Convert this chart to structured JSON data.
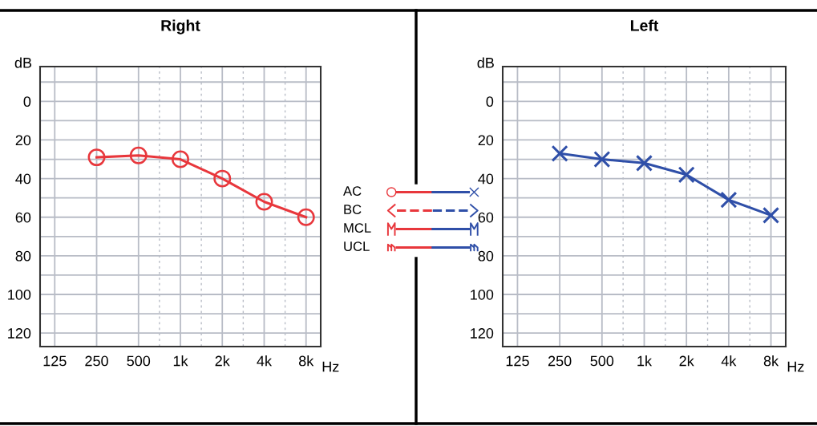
{
  "chart_data": [
    {
      "type": "line",
      "title": "Right",
      "xlabel": "Hz",
      "ylabel": "dB",
      "categories": [
        "125",
        "250",
        "500",
        "1k",
        "2k",
        "4k",
        "8k"
      ],
      "series": [
        {
          "color": "#e8373c",
          "values": [
            null,
            29,
            28,
            30,
            40,
            52,
            60
          ]
        }
      ],
      "marker": "circle",
      "ylim": [
        127,
        -18
      ],
      "yticks": [
        {
          "value": -10,
          "label": null
        },
        0,
        {
          "value": 10,
          "label": null
        },
        20,
        {
          "value": 30,
          "label": null
        },
        40,
        {
          "value": 50,
          "label": null
        },
        60,
        {
          "value": 70,
          "label": null
        },
        80,
        {
          "value": 90,
          "label": null
        },
        100,
        {
          "value": 110,
          "label": null
        },
        120
      ],
      "grid": true
    },
    {
      "type": "other",
      "annotations": [
        "AC",
        "BC",
        "MCL",
        "UCL"
      ]
    },
    {
      "type": "line",
      "title": "Left",
      "xlabel": "Hz",
      "ylabel": "dB",
      "categories": [
        "125",
        "250",
        "500",
        "1k",
        "2k",
        "4k",
        "8k"
      ],
      "series": [
        {
          "color": "#2f4fa8",
          "values": [
            null,
            27,
            30,
            32,
            38,
            51,
            59
          ]
        }
      ],
      "marker": "cross",
      "ylim": [
        127,
        -18
      ],
      "yticks": [
        {
          "value": -10,
          "label": null
        },
        0,
        {
          "value": 10,
          "label": null
        },
        20,
        {
          "value": 30,
          "label": null
        },
        40,
        {
          "value": 50,
          "label": null
        },
        60,
        {
          "value": 70,
          "label": null
        },
        80,
        {
          "value": 90,
          "label": null
        },
        100,
        {
          "value": 110,
          "label": null
        },
        120
      ],
      "grid": true
    }
  ]
}
